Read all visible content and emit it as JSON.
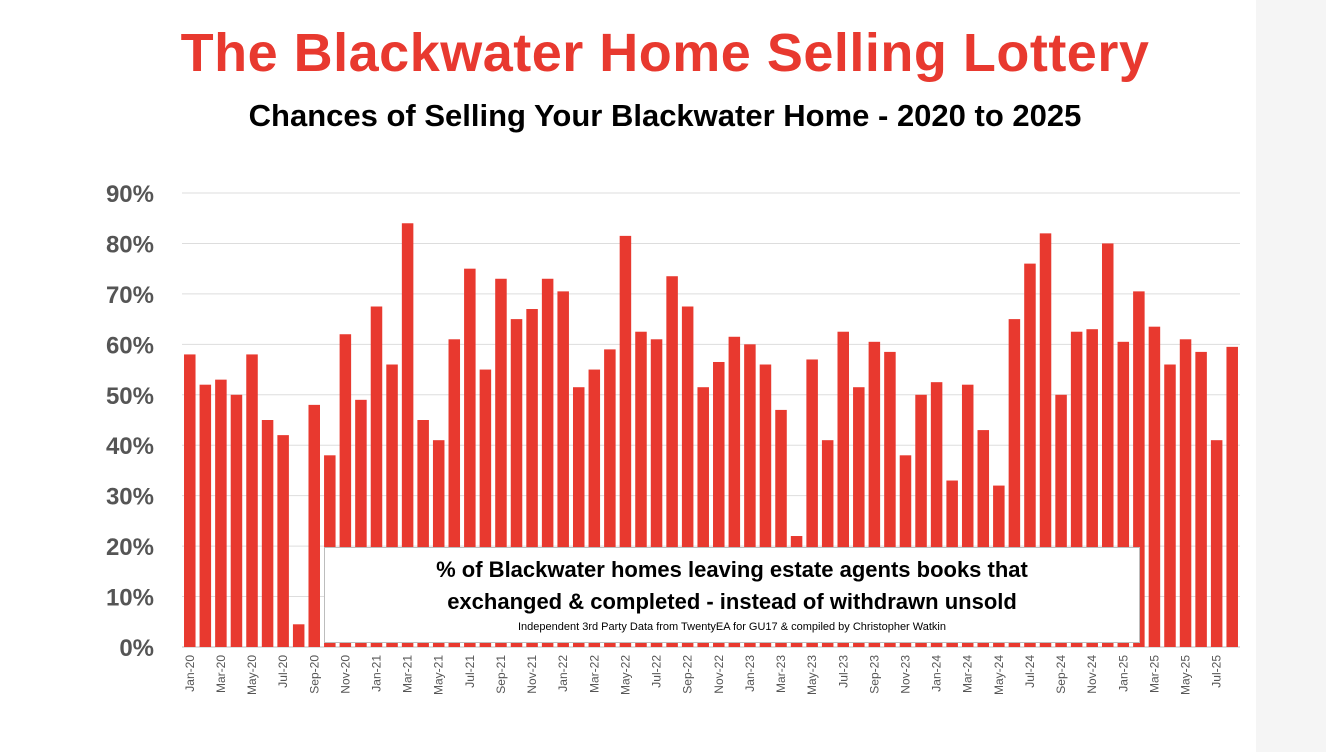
{
  "chart_data": {
    "type": "bar",
    "title": "The Blackwater Home Selling Lottery",
    "subtitle": "Chances of Selling Your Blackwater Home - 2020 to 2025",
    "bar_color": "#e8392f",
    "title_color": "#e8392f",
    "ylim": [
      0,
      90
    ],
    "yticks": [
      "0%",
      "10%",
      "20%",
      "30%",
      "40%",
      "50%",
      "60%",
      "70%",
      "80%",
      "90%"
    ],
    "grid": true,
    "categories": [
      "Jan-20",
      "Feb-20",
      "Mar-20",
      "Apr-20",
      "May-20",
      "Jun-20",
      "Jul-20",
      "Aug-20",
      "Sep-20",
      "Oct-20",
      "Nov-20",
      "Dec-20",
      "Jan-21",
      "Feb-21",
      "Mar-21",
      "Apr-21",
      "May-21",
      "Jun-21",
      "Jul-21",
      "Aug-21",
      "Sep-21",
      "Oct-21",
      "Nov-21",
      "Dec-21",
      "Jan-22",
      "Feb-22",
      "Mar-22",
      "Apr-22",
      "May-22",
      "Jun-22",
      "Jul-22",
      "Aug-22",
      "Sep-22",
      "Oct-22",
      "Nov-22",
      "Dec-22",
      "Jan-23",
      "Feb-23",
      "Mar-23",
      "Apr-23",
      "May-23",
      "Jun-23",
      "Jul-23",
      "Aug-23",
      "Sep-23",
      "Oct-23",
      "Nov-23",
      "Dec-23",
      "Jan-24",
      "Feb-24",
      "Mar-24",
      "Apr-24",
      "May-24",
      "Jun-24",
      "Jul-24",
      "Aug-24",
      "Sep-24",
      "Oct-24",
      "Nov-24",
      "Dec-24",
      "Jan-25",
      "Feb-25",
      "Mar-25",
      "Apr-25",
      "May-25",
      "Jun-25",
      "Jul-25",
      "Aug-25"
    ],
    "values": [
      58,
      52,
      53,
      50,
      58,
      45,
      42,
      4.5,
      48,
      38,
      62,
      49,
      67.5,
      56,
      84,
      45,
      41,
      61,
      75,
      55,
      73,
      65,
      67,
      73,
      70.5,
      51.5,
      55,
      59,
      81.5,
      62.5,
      61,
      73.5,
      67.5,
      51.5,
      56.5,
      61.5,
      60,
      56,
      47,
      22,
      57,
      41,
      62.5,
      51.5,
      60.5,
      58.5,
      38,
      50,
      52.5,
      33,
      52,
      43,
      32,
      65,
      76,
      82,
      50,
      62.5,
      63,
      80,
      60.5,
      70.5,
      63.5,
      56,
      61,
      58.5,
      41,
      59.5
    ]
  },
  "annotation": {
    "line1": "% of Blackwater homes leaving estate agents books that",
    "line2": "exchanged & completed - instead of withdrawn unsold",
    "source": "Independent 3rd Party Data from TwentyEA for GU17 & compiled by Christopher Watkin"
  }
}
